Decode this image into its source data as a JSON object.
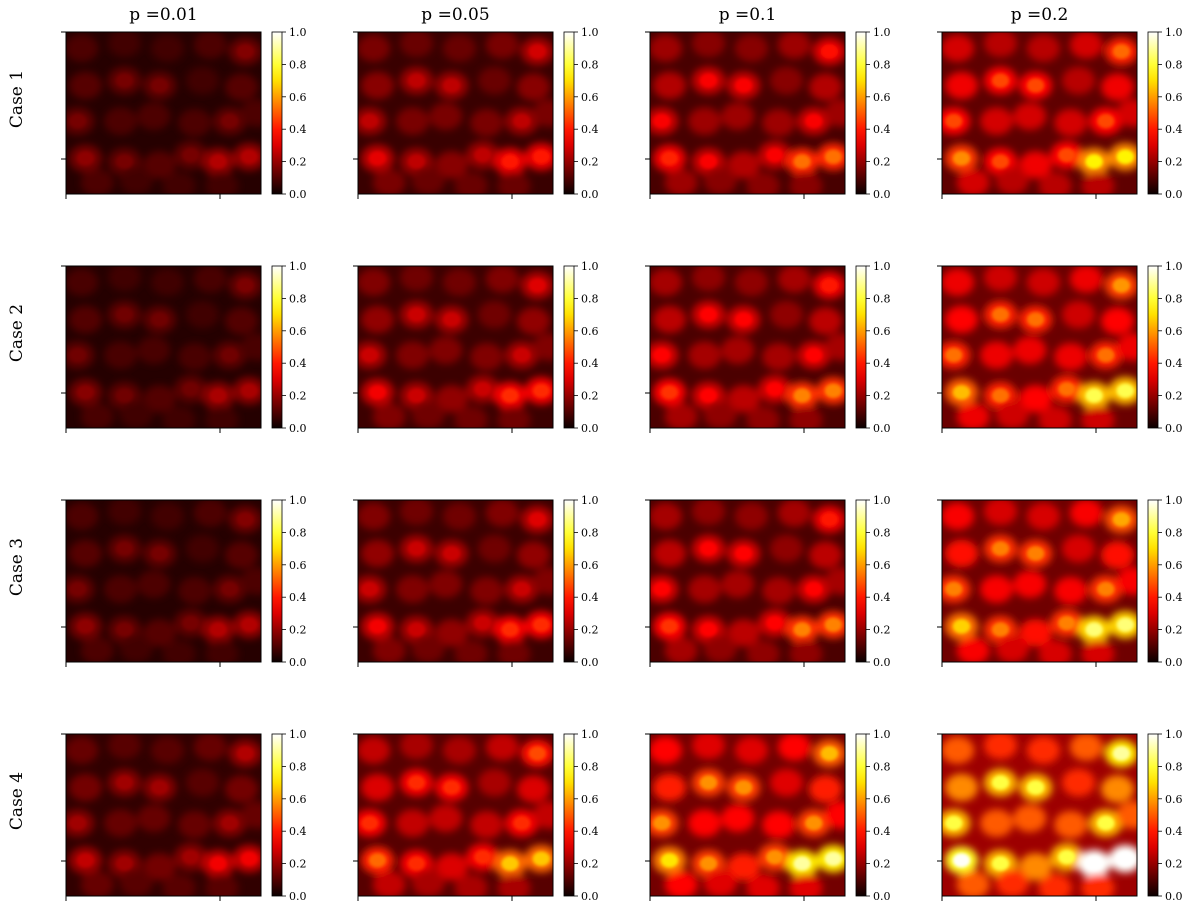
{
  "chart_data": {
    "type": "heatmap",
    "colormap": "hot",
    "column_titles": [
      "p =0.01",
      "p =0.05",
      "p =0.1",
      "p =0.2"
    ],
    "row_labels": [
      "Case 1",
      "Case 2",
      "Case 3",
      "Case 4"
    ],
    "colorbar": {
      "range": [
        0.0,
        1.0
      ],
      "ticks": [
        "0.0",
        "0.2",
        "0.4",
        "0.6",
        "0.8",
        "1.0"
      ]
    },
    "intensity_by_case_and_p": [
      [
        0.18,
        0.3,
        0.4,
        0.55
      ],
      [
        0.17,
        0.32,
        0.42,
        0.62
      ],
      [
        0.18,
        0.32,
        0.42,
        0.65
      ],
      [
        0.25,
        0.5,
        0.68,
        0.95
      ]
    ]
  }
}
